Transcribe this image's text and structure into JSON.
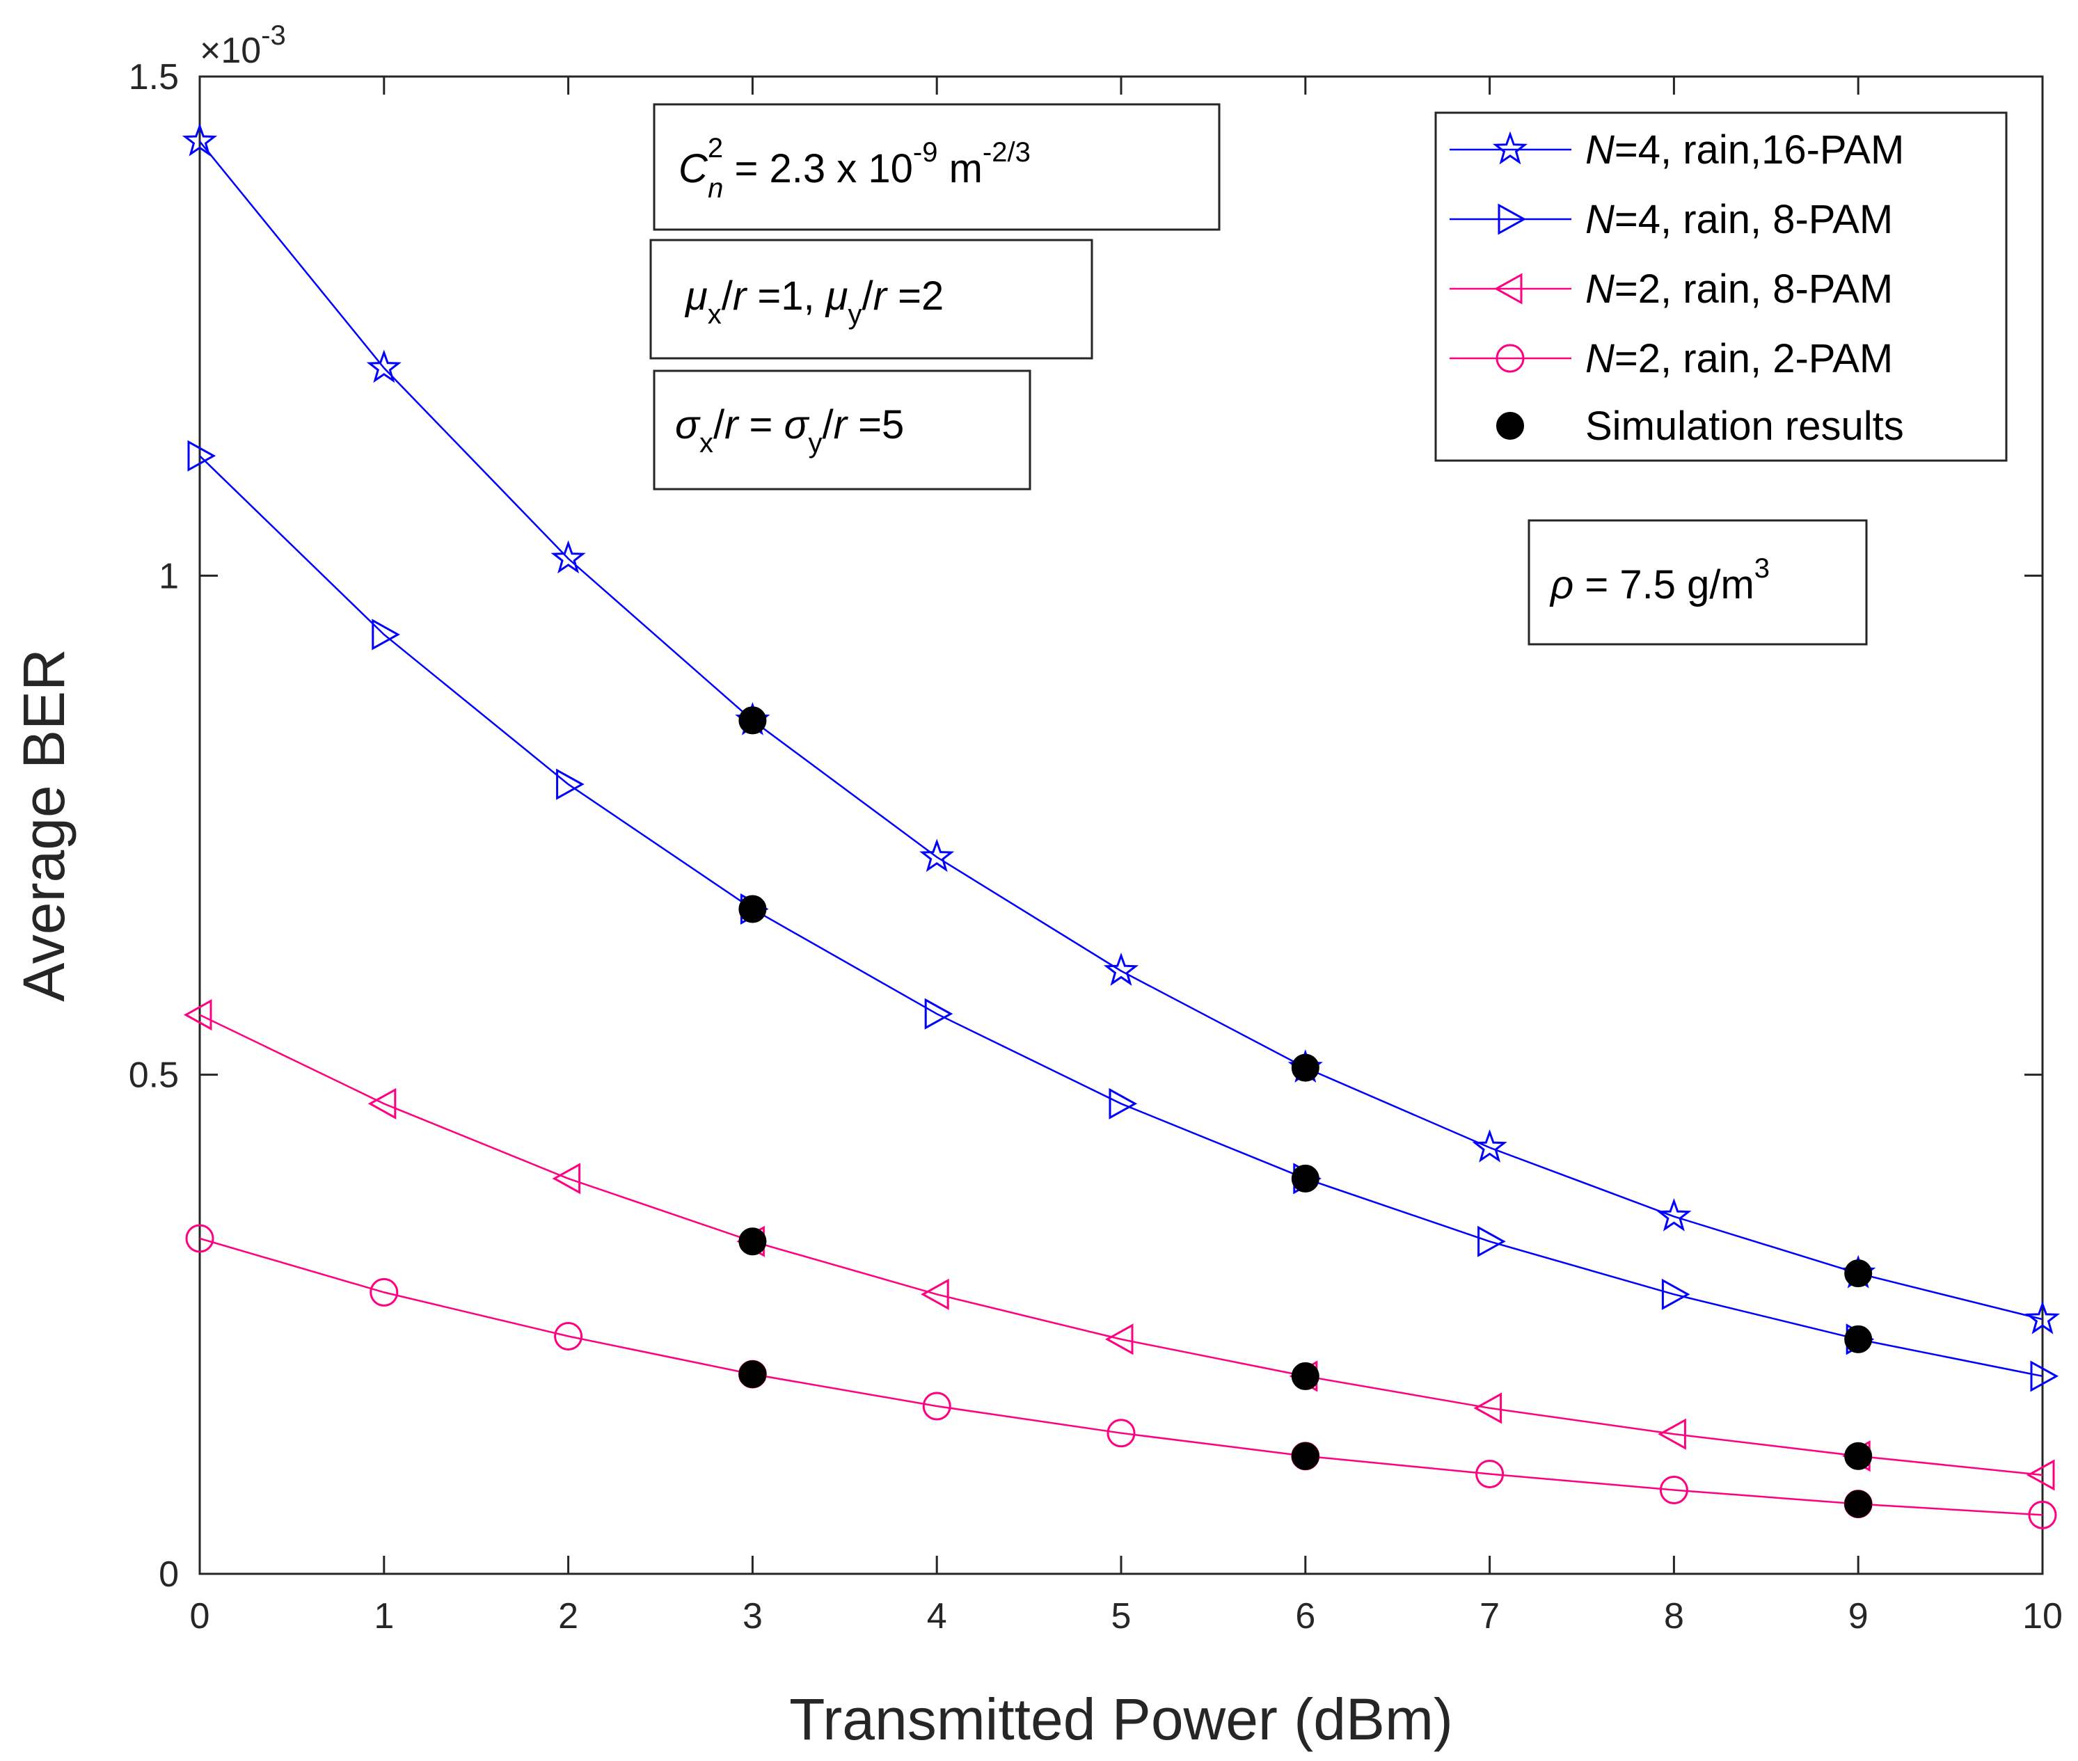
{
  "chart_data": {
    "type": "line",
    "xlabel": "Transmitted Power (dBm)",
    "ylabel": "Average BER",
    "xlim": [
      0,
      10
    ],
    "ylim": [
      0,
      1.5
    ],
    "y_scale_text": "×10",
    "y_scale_exp": "-3",
    "xticks": [
      "0",
      "1",
      "2",
      "3",
      "4",
      "5",
      "6",
      "7",
      "8",
      "9",
      "10"
    ],
    "yticks": [
      {
        "value": 0,
        "label": "0"
      },
      {
        "value": 0.5,
        "label": "0.5"
      },
      {
        "value": 1,
        "label": "1"
      },
      {
        "value": 1.5,
        "label": "1.5"
      }
    ],
    "x": [
      0,
      1,
      2,
      3,
      4,
      5,
      6,
      7,
      8,
      9,
      10
    ],
    "series": [
      {
        "name_var": "N",
        "name_rest": "=4, rain,16-PAM",
        "color": "#0000ff",
        "marker": "star",
        "values": [
          1.435,
          1.208,
          1.017,
          0.855,
          0.718,
          0.604,
          0.507,
          0.427,
          0.358,
          0.301,
          0.255
        ]
      },
      {
        "name_var": "N",
        "name_rest": "=4, rain,  8-PAM",
        "color": "#0000ff",
        "marker": "triangle-right",
        "values": [
          1.12,
          0.941,
          0.791,
          0.666,
          0.561,
          0.471,
          0.396,
          0.333,
          0.28,
          0.235,
          0.198
        ]
      },
      {
        "name_var": "N",
        "name_rest": "=2, rain,  8-PAM",
        "color": "#ff0080",
        "marker": "triangle-left",
        "values": [
          0.56,
          0.471,
          0.396,
          0.333,
          0.28,
          0.235,
          0.198,
          0.166,
          0.14,
          0.118,
          0.099
        ]
      },
      {
        "name_var": "N",
        "name_rest": "=2, rain,  2-PAM",
        "color": "#ff0080",
        "marker": "circle",
        "values": [
          0.336,
          0.282,
          0.238,
          0.2,
          0.168,
          0.141,
          0.118,
          0.1,
          0.084,
          0.07,
          0.059
        ]
      }
    ],
    "simulation": {
      "label": "Simulation results",
      "color": "#000000",
      "points": [
        {
          "x": 3,
          "y": 0.855
        },
        {
          "x": 3,
          "y": 0.666
        },
        {
          "x": 3,
          "y": 0.333
        },
        {
          "x": 3,
          "y": 0.2
        },
        {
          "x": 6,
          "y": 0.507
        },
        {
          "x": 6,
          "y": 0.396
        },
        {
          "x": 6,
          "y": 0.198
        },
        {
          "x": 6,
          "y": 0.118
        },
        {
          "x": 9,
          "y": 0.301
        },
        {
          "x": 9,
          "y": 0.235
        },
        {
          "x": 9,
          "y": 0.118
        },
        {
          "x": 9,
          "y": 0.07
        }
      ]
    },
    "legend_position": "top-right",
    "annotations": {
      "cn2": {
        "base": "C",
        "sup": "2",
        "sub": "n",
        "text": " = 2.3 x 10",
        "exp": "-9",
        "unit": " m",
        "unit_exp": "-2/3"
      },
      "mu": {
        "mu": "μ",
        "x": "x",
        "r1": "/",
        "r": "r",
        "eq1": " =1, ",
        "y": "y",
        "eq2": " =2"
      },
      "sigma": {
        "sigma": "σ",
        "x": "x",
        "slash": "/",
        "r": "r",
        "eq": " = ",
        "y": "y",
        "end": " =5"
      },
      "rho": {
        "rho": "ρ",
        "text": " = 7.5 g/m",
        "exp": "3"
      }
    }
  }
}
